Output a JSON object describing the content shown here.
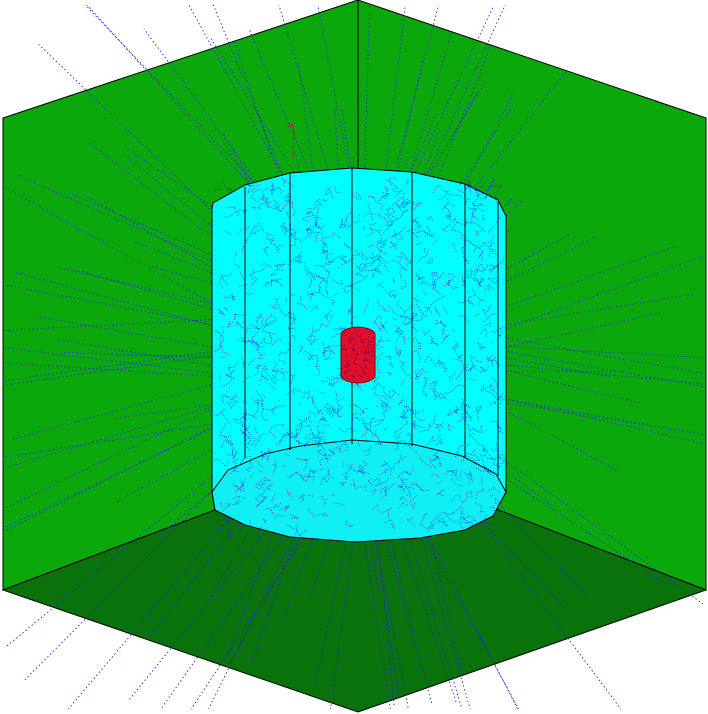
{
  "scene": {
    "description_label": "",
    "colors": {
      "background": "#ffffff",
      "wall_left": "#0aa80a",
      "wall_right": "#0aa80a",
      "floor": "#0a720a",
      "edge": "#000000",
      "cylinder": "#00ffff",
      "cylinder_bottom": "#10f0f4",
      "tracks": "#2a2ae0",
      "core": "#e0102a",
      "core_outline": "#800010"
    },
    "icons": {
      "cylinder": "detector-cylinder-icon",
      "core": "source-core-icon"
    }
  }
}
